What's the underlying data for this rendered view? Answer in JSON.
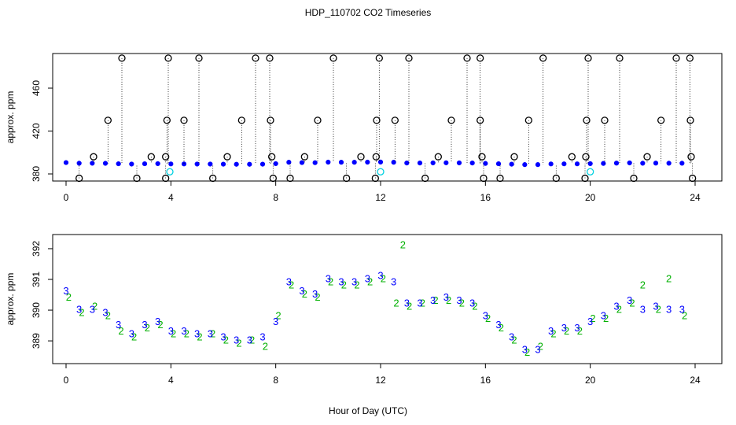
{
  "chart_data": [
    {
      "type": "scatter",
      "title": "HDP_110702  CO2 Timeseries",
      "ylabel": "approx. ppm",
      "xlim": [
        -0.51,
        25.02
      ],
      "ylim": [
        373.4,
        492.3
      ],
      "xticks": [
        0,
        4,
        8,
        12,
        16,
        20,
        24
      ],
      "yticks": [
        380,
        420,
        460
      ],
      "series": [
        {
          "color": "#0000ff",
          "marker": "dot",
          "x": [
            0,
            0.5,
            1,
            1.5,
            2,
            2.5,
            3,
            3.5,
            4,
            4.5,
            5,
            5.5,
            6,
            6.5,
            7,
            7.5,
            8,
            8.5,
            9,
            9.5,
            10,
            10.5,
            11,
            11.5,
            12,
            12.5,
            13,
            13.5,
            14,
            14.5,
            15,
            15.5,
            16,
            16.5,
            17,
            17.5,
            18,
            18.5,
            19,
            19.5,
            20,
            20.5,
            21,
            21.5,
            22,
            22.5,
            23,
            23.5
          ],
          "values": [
            390.6,
            390.0,
            390.0,
            389.9,
            389.5,
            389.2,
            389.5,
            389.6,
            389.3,
            389.3,
            389.2,
            389.2,
            389.1,
            389.0,
            389.0,
            389.1,
            389.6,
            390.9,
            390.6,
            390.5,
            391.0,
            390.9,
            390.9,
            391.0,
            391.1,
            390.9,
            390.2,
            390.2,
            390.3,
            390.4,
            390.3,
            390.2,
            389.8,
            389.5,
            389.1,
            388.7,
            388.7,
            389.3,
            389.4,
            389.4,
            389.6,
            389.8,
            390.1,
            390.3,
            390.0,
            390.1,
            390.0,
            390.0
          ]
        },
        {
          "color": "#000000",
          "marker": "circle",
          "x": [
            0.5,
            1.05,
            1.6,
            2.13,
            2.7,
            3.25,
            3.8,
            3.8,
            3.85,
            3.9,
            4.5,
            5.07,
            5.6,
            6.15,
            6.7,
            7.23,
            7.77,
            7.8,
            7.85,
            7.9,
            8.55,
            9.1,
            9.6,
            10.2,
            10.7,
            11.25,
            11.8,
            11.83,
            11.85,
            11.95,
            12.55,
            13.08,
            13.7,
            14.2,
            14.7,
            15.3,
            15.8,
            15.8,
            15.87,
            15.93,
            16.56,
            17.1,
            17.65,
            18.2,
            18.7,
            19.3,
            19.8,
            19.83,
            19.86,
            19.92,
            20.55,
            21.12,
            21.66,
            22.17,
            22.7,
            23.28,
            23.8,
            23.82,
            23.85,
            23.9
          ],
          "values": [
            376,
            396,
            430,
            488,
            376,
            396,
            376,
            396,
            430,
            488,
            430,
            488,
            376,
            396,
            430,
            488,
            488,
            430,
            396,
            376,
            376,
            396,
            430,
            488,
            376,
            396,
            376,
            396,
            430,
            488,
            430,
            488,
            376,
            396,
            430,
            488,
            488,
            430,
            396,
            376,
            376,
            396,
            430,
            488,
            376,
            396,
            376,
            396,
            430,
            488,
            430,
            488,
            376,
            396,
            430,
            488,
            488,
            430,
            396,
            376
          ]
        },
        {
          "color": "#00d0e0",
          "marker": "circle",
          "x": [
            3.96,
            12.0,
            20.0
          ],
          "values": [
            382,
            382,
            382
          ]
        }
      ]
    },
    {
      "type": "scatter",
      "xlabel": "Hour of Day (UTC)",
      "ylabel": "approx. ppm",
      "xlim": [
        -0.51,
        25.02
      ],
      "ylim": [
        388.26,
        392.46
      ],
      "xticks": [
        0,
        4,
        8,
        12,
        16,
        20,
        24
      ],
      "yticks": [
        389,
        390,
        391,
        392
      ],
      "series": [
        {
          "color": "#00b000",
          "marker": "2",
          "x": [
            0.1,
            0.6,
            1.1,
            1.6,
            2.1,
            2.6,
            3.1,
            3.6,
            4.1,
            4.6,
            5.1,
            5.6,
            6.1,
            6.6,
            7.1,
            7.6,
            8.1,
            8.6,
            9.1,
            9.6,
            10.1,
            10.6,
            11.1,
            11.6,
            12.1,
            12.6,
            12.85,
            13.1,
            13.6,
            14.1,
            14.6,
            15.1,
            15.6,
            16.1,
            16.6,
            17.1,
            17.6,
            18.1,
            18.6,
            19.1,
            19.6,
            20.1,
            20.6,
            21.1,
            21.6,
            22.0,
            22.6,
            23.0,
            23.6
          ],
          "values": [
            390.4,
            389.9,
            390.1,
            389.8,
            389.3,
            389.1,
            389.4,
            389.5,
            389.2,
            389.2,
            389.1,
            389.2,
            389.0,
            388.9,
            389.0,
            388.8,
            389.8,
            390.8,
            390.5,
            390.4,
            390.9,
            390.8,
            390.8,
            390.9,
            391.0,
            390.2,
            392.1,
            390.1,
            390.2,
            390.3,
            390.3,
            390.2,
            390.1,
            389.7,
            389.4,
            389.0,
            388.6,
            388.8,
            389.2,
            389.3,
            389.3,
            389.7,
            389.7,
            390.0,
            390.2,
            390.8,
            390.0,
            391.0,
            389.8
          ]
        },
        {
          "color": "#0000ff",
          "marker": "3",
          "x": [
            0,
            0.5,
            1,
            1.5,
            2,
            2.5,
            3,
            3.5,
            4,
            4.5,
            5,
            5.5,
            6,
            6.5,
            7,
            7.5,
            8,
            8.5,
            9,
            9.5,
            10,
            10.5,
            11,
            11.5,
            12,
            12.5,
            13,
            13.5,
            14,
            14.5,
            15,
            15.5,
            16,
            16.5,
            17,
            17.5,
            18,
            18.5,
            19,
            19.5,
            20,
            20.5,
            21,
            21.5,
            22,
            22.5,
            23,
            23.5
          ],
          "values": [
            390.6,
            390.0,
            390.0,
            389.9,
            389.5,
            389.2,
            389.5,
            389.6,
            389.3,
            389.3,
            389.2,
            389.2,
            389.1,
            389.0,
            389.0,
            389.1,
            389.6,
            390.9,
            390.6,
            390.5,
            391.0,
            390.9,
            390.9,
            391.0,
            391.1,
            390.9,
            390.2,
            390.2,
            390.3,
            390.4,
            390.3,
            390.2,
            389.8,
            389.5,
            389.1,
            388.7,
            388.7,
            389.3,
            389.4,
            389.4,
            389.6,
            389.8,
            390.1,
            390.3,
            390.0,
            390.1,
            390.0,
            390.0
          ]
        }
      ]
    }
  ]
}
